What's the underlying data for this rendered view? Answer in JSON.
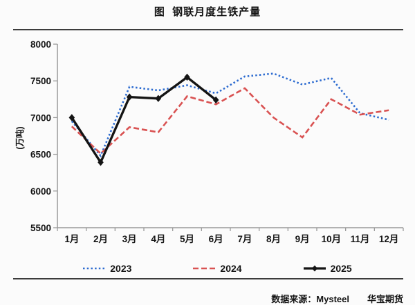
{
  "page": {
    "background": "#fbfbfb"
  },
  "chart_data": {
    "type": "line",
    "title": "图  钢联月度生铁产量",
    "xlabel": "",
    "ylabel": "(万吨)",
    "ylim": [
      5500,
      8000
    ],
    "ytick_step": 500,
    "grid": false,
    "legend_position": "bottom",
    "categories": [
      "1月",
      "2月",
      "3月",
      "4月",
      "5月",
      "6月",
      "7月",
      "8月",
      "9月",
      "10月",
      "11月",
      "12月"
    ],
    "series": [
      {
        "name": "2023",
        "color": "#2c6bd0",
        "line_style": "dotted",
        "values": [
          6950,
          6480,
          7420,
          7370,
          7440,
          7330,
          7560,
          7600,
          7450,
          7540,
          7060,
          6970
        ]
      },
      {
        "name": "2024",
        "color": "#d95252",
        "line_style": "dashed",
        "values": [
          6880,
          6510,
          6870,
          6800,
          7290,
          7180,
          7400,
          7000,
          6730,
          7250,
          7040,
          7100
        ]
      },
      {
        "name": "2025",
        "color": "#141414",
        "line_style": "solid",
        "marker": "diamond",
        "values": [
          7000,
          6390,
          7280,
          7260,
          7550,
          7240
        ]
      }
    ]
  },
  "source": {
    "label": "数据来源：Mysteel",
    "brand": "华宝期货"
  }
}
